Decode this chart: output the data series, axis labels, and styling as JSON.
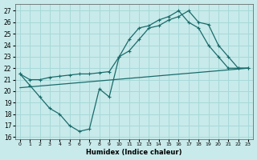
{
  "xlabel": "Humidex (Indice chaleur)",
  "background_color": "#c8eaea",
  "grid_color": "#a8d8d8",
  "line_color": "#1a6b6b",
  "xlim": [
    -0.5,
    23.5
  ],
  "ylim": [
    15.8,
    27.6
  ],
  "xticks": [
    0,
    1,
    2,
    3,
    4,
    5,
    6,
    7,
    8,
    9,
    10,
    11,
    12,
    13,
    14,
    15,
    16,
    17,
    18,
    19,
    20,
    21,
    22,
    23
  ],
  "yticks": [
    16,
    17,
    18,
    19,
    20,
    21,
    22,
    23,
    24,
    25,
    26,
    27
  ],
  "line_upper_x": [
    0,
    1,
    2,
    3,
    4,
    5,
    6,
    7,
    8,
    9,
    10,
    11,
    12,
    13,
    14,
    15,
    16,
    17,
    18,
    19,
    20,
    21,
    22,
    23
  ],
  "line_upper_y": [
    21.5,
    21.0,
    21.0,
    21.2,
    21.3,
    21.4,
    21.5,
    21.5,
    21.6,
    21.7,
    23.0,
    24.5,
    25.5,
    25.7,
    26.2,
    26.5,
    27.0,
    26.0,
    25.5,
    24.0,
    23.0,
    22.0,
    22.0,
    22.0
  ],
  "line_zigzag_x": [
    0,
    1,
    2,
    3,
    4,
    5,
    6,
    7,
    8,
    9,
    10,
    11,
    12,
    13,
    14,
    15,
    16,
    17,
    18,
    19,
    20,
    21,
    22,
    23
  ],
  "line_zigzag_y": [
    21.5,
    20.5,
    19.5,
    18.5,
    18.0,
    17.0,
    16.5,
    16.7,
    20.2,
    19.5,
    23.0,
    23.5,
    24.5,
    25.5,
    25.7,
    26.2,
    26.5,
    27.0,
    26.0,
    25.8,
    24.0,
    23.0,
    22.0,
    22.0
  ],
  "line_diag_x": [
    0,
    1,
    2,
    3,
    4,
    5,
    6,
    7,
    8,
    9,
    10,
    11,
    12,
    13,
    14,
    15,
    16,
    17,
    18,
    19,
    20,
    21,
    22,
    23
  ],
  "line_diag_y": [
    20.5,
    20.5,
    20.6,
    20.6,
    20.7,
    20.7,
    20.8,
    20.8,
    20.9,
    20.9,
    21.0,
    21.1,
    21.2,
    21.3,
    21.4,
    21.5,
    21.6,
    21.7,
    21.8,
    21.9,
    22.0,
    22.0,
    22.0,
    22.0
  ]
}
